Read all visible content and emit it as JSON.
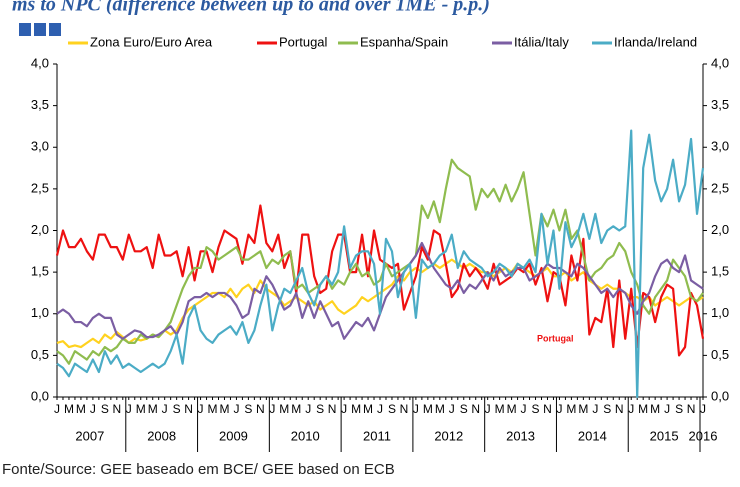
{
  "chart_data": {
    "type": "line",
    "title": "ms to NPC (difference between up to and over 1ME - p.p.)",
    "source": "Fonte/Source: GEE baseado em BCE/ GEE based on ECB",
    "annotation": "Portugal",
    "categories": [
      "J",
      null,
      "M",
      null,
      "M",
      null,
      "J",
      null,
      "S",
      null,
      "N",
      null,
      "J",
      null,
      "M",
      null,
      "M",
      null,
      "J",
      null,
      "S",
      null,
      "N",
      null,
      "J",
      null,
      "M",
      null,
      "M",
      null,
      "J",
      null,
      "S",
      null,
      "N",
      null,
      "J",
      null,
      "M",
      null,
      "M",
      null,
      "J",
      null,
      "S",
      null,
      "N",
      null,
      "J",
      null,
      "M",
      null,
      "M",
      null,
      "J",
      null,
      "S",
      null,
      "N",
      null,
      "J",
      null,
      "M",
      null,
      "M",
      null,
      "J",
      null,
      "S",
      null,
      "N",
      null,
      "J",
      null,
      "M",
      null,
      "M",
      null,
      "J",
      null,
      "S",
      null,
      "N",
      null,
      "J",
      null,
      "M",
      null,
      "M",
      null,
      "J",
      null,
      "S",
      null,
      "N",
      null,
      "J",
      null,
      "M",
      null,
      "M",
      null,
      "J",
      null,
      "S",
      null,
      "N",
      null,
      "J"
    ],
    "years": [
      "2007",
      "2008",
      "2009",
      "2010",
      "2011",
      "2012",
      "2013",
      "2014",
      "2015",
      "2016"
    ],
    "ylim": [
      0,
      4
    ],
    "yticks": [
      {
        "value": 0,
        "label": "0,0"
      },
      {
        "value": 0.5,
        "label": "0,5"
      },
      {
        "value": 1,
        "label": "1,0"
      },
      {
        "value": 1.5,
        "label": "1,5"
      },
      {
        "value": 2,
        "label": "2,0"
      },
      {
        "value": 2.5,
        "label": "2,5"
      },
      {
        "value": 3,
        "label": "3,0"
      },
      {
        "value": 3.5,
        "label": "3,5"
      },
      {
        "value": 4,
        "label": "4,0"
      }
    ],
    "y2lim": [
      0,
      4
    ],
    "y2ticks": [
      {
        "value": 0,
        "label": "0,0"
      },
      {
        "value": 0.5,
        "label": "0,5"
      },
      {
        "value": 1,
        "label": "1,0"
      },
      {
        "value": 1.5,
        "label": "1,5"
      },
      {
        "value": 2,
        "label": "2,0"
      },
      {
        "value": 2.5,
        "label": "2,5"
      },
      {
        "value": 3,
        "label": "3,0"
      },
      {
        "value": 3.5,
        "label": "3,5"
      },
      {
        "value": 4,
        "label": "4,0"
      }
    ],
    "series": [
      {
        "name": "Zona Euro/Euro Area",
        "color": "#ffd21f",
        "values": [
          0.65,
          0.67,
          0.6,
          0.62,
          0.6,
          0.65,
          0.7,
          0.65,
          0.75,
          0.7,
          0.78,
          0.72,
          0.65,
          0.7,
          0.68,
          0.7,
          0.75,
          0.72,
          0.8,
          0.75,
          0.8,
          0.95,
          1.05,
          1.1,
          1.15,
          1.2,
          1.25,
          1.25,
          1.2,
          1.3,
          1.2,
          1.3,
          1.35,
          1.25,
          1.4,
          1.3,
          1.25,
          1.2,
          1.1,
          1.15,
          1.2,
          1.15,
          1.1,
          1.15,
          1.05,
          1.1,
          1.15,
          1.05,
          1.0,
          1.05,
          1.1,
          1.2,
          1.15,
          1.2,
          1.25,
          1.3,
          1.35,
          1.45,
          1.4,
          1.5,
          1.55,
          1.5,
          1.55,
          1.6,
          1.55,
          1.6,
          1.65,
          1.6,
          1.55,
          1.6,
          1.55,
          1.5,
          1.5,
          1.45,
          1.5,
          1.55,
          1.5,
          1.6,
          1.55,
          1.5,
          1.45,
          1.5,
          1.55,
          1.45,
          1.45,
          1.5,
          1.4,
          1.45,
          1.5,
          1.4,
          1.35,
          1.3,
          1.35,
          1.3,
          1.3,
          1.25,
          1.2,
          1.2,
          1.15,
          1.2,
          1.1,
          1.15,
          1.2,
          1.15,
          1.1,
          1.15,
          1.2,
          1.15,
          1.2
        ]
      },
      {
        "name": "Portugal",
        "color": "#ee1111",
        "values": [
          1.7,
          2.0,
          1.8,
          1.8,
          1.9,
          1.75,
          1.65,
          1.95,
          1.95,
          1.8,
          1.8,
          1.65,
          1.95,
          1.75,
          1.75,
          1.8,
          1.55,
          1.95,
          1.7,
          1.7,
          1.75,
          1.45,
          1.8,
          1.4,
          1.75,
          1.75,
          1.5,
          1.8,
          2.0,
          1.95,
          1.9,
          1.6,
          1.95,
          1.85,
          2.3,
          1.85,
          1.75,
          1.95,
          1.55,
          1.75,
          1.25,
          1.95,
          1.95,
          1.45,
          1.25,
          1.3,
          1.75,
          1.95,
          1.95,
          1.5,
          1.5,
          1.95,
          1.45,
          2.0,
          1.65,
          1.6,
          1.55,
          1.6,
          1.05,
          1.25,
          1.45,
          1.8,
          1.65,
          2.0,
          1.95,
          1.6,
          1.2,
          1.3,
          1.6,
          1.45,
          1.55,
          1.45,
          1.3,
          1.6,
          1.35,
          1.4,
          1.45,
          1.55,
          1.5,
          1.6,
          1.35,
          1.55,
          1.15,
          1.5,
          1.45,
          1.1,
          1.7,
          1.4,
          1.9,
          0.75,
          0.95,
          0.9,
          1.3,
          0.6,
          1.4,
          0.7,
          1.3,
          0.6,
          1.25,
          1.2,
          0.9,
          1.2,
          1.35,
          1.3,
          0.5,
          0.6,
          1.25,
          1.1,
          0.7
        ]
      },
      {
        "name": "Espanha/Spain",
        "color": "#8fbc4f",
        "values": [
          0.55,
          0.5,
          0.4,
          0.55,
          0.5,
          0.45,
          0.55,
          0.5,
          0.6,
          0.55,
          0.6,
          0.7,
          0.65,
          0.65,
          0.75,
          0.7,
          0.75,
          0.72,
          0.8,
          0.9,
          1.1,
          1.3,
          1.45,
          1.55,
          1.55,
          1.8,
          1.75,
          1.65,
          1.7,
          1.75,
          1.8,
          1.65,
          1.65,
          1.7,
          1.75,
          1.55,
          1.65,
          1.6,
          1.7,
          1.75,
          1.3,
          1.35,
          1.25,
          1.3,
          1.35,
          1.45,
          1.3,
          1.4,
          1.35,
          1.5,
          1.6,
          1.45,
          1.5,
          1.35,
          1.4,
          1.6,
          1.45,
          1.5,
          1.55,
          1.6,
          1.7,
          2.3,
          2.15,
          2.35,
          2.1,
          2.5,
          2.85,
          2.75,
          2.7,
          2.65,
          2.25,
          2.5,
          2.4,
          2.5,
          2.35,
          2.55,
          2.35,
          2.5,
          2.7,
          2.2,
          1.7,
          2.2,
          2.05,
          2.25,
          2.0,
          2.25,
          1.9,
          2.0,
          1.7,
          1.4,
          1.5,
          1.55,
          1.65,
          1.7,
          1.85,
          1.75,
          1.5,
          1.35,
          1.1,
          1.0,
          1.2,
          1.3,
          1.4,
          1.65,
          1.55,
          1.45,
          1.2,
          1.15,
          1.25
        ]
      },
      {
        "name": "Itália/Italy",
        "color": "#7b5ea3",
        "values": [
          1.0,
          1.05,
          1.0,
          0.9,
          0.9,
          0.85,
          0.95,
          1.0,
          0.95,
          0.95,
          0.75,
          0.7,
          0.75,
          0.8,
          0.78,
          0.72,
          0.72,
          0.75,
          0.8,
          0.85,
          0.75,
          0.9,
          1.15,
          1.2,
          1.2,
          1.25,
          1.2,
          1.25,
          1.25,
          1.2,
          1.1,
          0.95,
          1.0,
          1.3,
          1.25,
          1.45,
          1.35,
          1.2,
          1.05,
          1.1,
          1.25,
          0.95,
          1.15,
          0.95,
          1.15,
          1.0,
          0.85,
          0.9,
          0.7,
          0.8,
          0.9,
          0.85,
          0.95,
          0.8,
          1.0,
          1.2,
          1.3,
          1.4,
          1.5,
          1.6,
          1.7,
          1.85,
          1.7,
          1.55,
          1.45,
          1.35,
          1.3,
          1.4,
          1.25,
          1.35,
          1.3,
          1.4,
          1.5,
          1.4,
          1.55,
          1.45,
          1.5,
          1.55,
          1.55,
          1.4,
          1.45,
          1.5,
          1.6,
          1.55,
          1.55,
          1.5,
          1.45,
          1.6,
          1.55,
          1.45,
          1.35,
          1.25,
          1.3,
          1.2,
          1.3,
          1.25,
          1.1,
          1.0,
          1.15,
          1.25,
          1.45,
          1.6,
          1.65,
          1.55,
          1.5,
          1.7,
          1.4,
          1.35,
          1.3
        ]
      },
      {
        "name": "Irlanda/Ireland",
        "color": "#4bacc6",
        "values": [
          0.4,
          0.35,
          0.25,
          0.4,
          0.35,
          0.3,
          0.45,
          0.3,
          0.55,
          0.4,
          0.5,
          0.35,
          0.4,
          0.35,
          0.3,
          0.35,
          0.4,
          0.35,
          0.4,
          0.55,
          0.75,
          0.4,
          0.95,
          1.1,
          0.8,
          0.7,
          0.65,
          0.75,
          0.8,
          0.85,
          0.75,
          0.9,
          0.65,
          0.8,
          1.1,
          1.35,
          0.8,
          1.1,
          1.3,
          1.25,
          1.4,
          1.55,
          1.25,
          1.1,
          1.35,
          1.45,
          1.35,
          1.5,
          2.05,
          1.55,
          1.7,
          1.75,
          1.75,
          1.6,
          1.0,
          1.9,
          1.75,
          1.2,
          1.5,
          1.6,
          0.95,
          1.65,
          1.55,
          1.6,
          1.7,
          1.75,
          1.95,
          1.55,
          1.75,
          1.65,
          1.6,
          1.55,
          1.45,
          1.5,
          1.6,
          1.55,
          1.45,
          1.6,
          1.55,
          1.65,
          1.5,
          2.2,
          1.6,
          2.0,
          1.3,
          2.1,
          1.8,
          1.95,
          2.2,
          1.9,
          2.2,
          1.85,
          2.0,
          2.05,
          2.0,
          2.05,
          3.2,
          0.0,
          2.75,
          3.15,
          2.6,
          2.35,
          2.5,
          2.85,
          2.35,
          2.55,
          3.1,
          2.2,
          2.75
        ]
      }
    ]
  }
}
